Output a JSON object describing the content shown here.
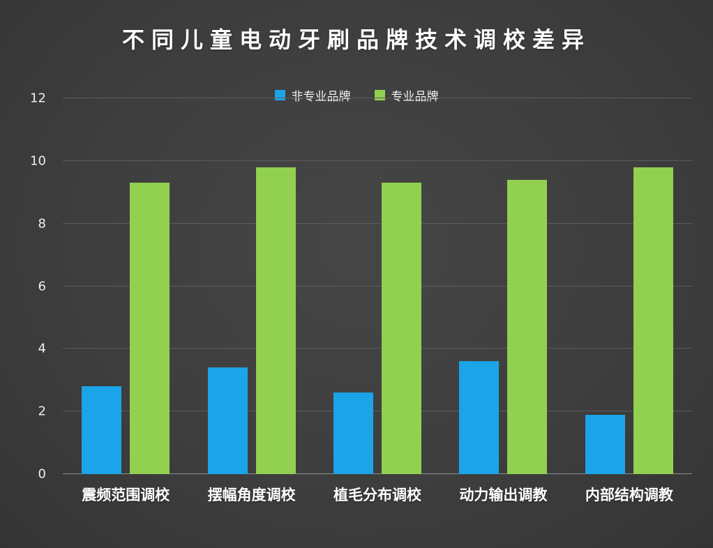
{
  "chart_data": {
    "type": "bar",
    "title": "不同儿童电动牙刷品牌技术调校差异",
    "categories": [
      "震频范围调校",
      "摆幅角度调校",
      "植毛分布调校",
      "动力输出调教",
      "内部结构调教"
    ],
    "series": [
      {
        "name": "非专业品牌",
        "color": "#1CA4E8",
        "values": [
          2.8,
          3.4,
          2.6,
          3.6,
          1.9
        ]
      },
      {
        "name": "专业品牌",
        "color": "#92D050",
        "values": [
          9.3,
          9.8,
          9.3,
          9.4,
          9.8
        ]
      }
    ],
    "xlabel": "",
    "ylabel": "",
    "ylim": [
      0,
      12
    ],
    "yticks": [
      0,
      2,
      4,
      6,
      8,
      10,
      12
    ],
    "grid": true,
    "legend_position": "top-center",
    "background_color": "#3F3F3F",
    "text_color": "#FFFFFF"
  }
}
